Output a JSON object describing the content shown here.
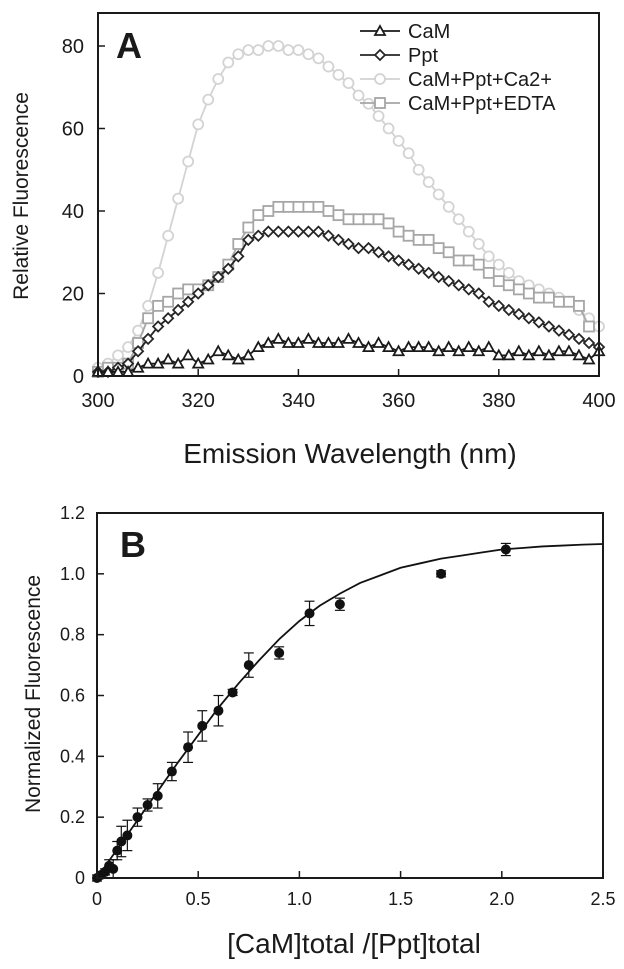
{
  "colors": {
    "axis": "#1a1a1a",
    "cam": "#1a1a1a",
    "ppt": "#262626",
    "ca": "#d3d3d3",
    "edta": "#a6a6a6",
    "points": "#111111"
  },
  "chart_data": [
    {
      "panel_label": "A",
      "type": "line",
      "xlabel": "Emission Wavelength (nm)",
      "ylabel": "Relative Fluorescence",
      "xlim": [
        300,
        400
      ],
      "ylim": [
        0,
        88
      ],
      "xticks": [
        300,
        320,
        340,
        360,
        380,
        400
      ],
      "yticks": [
        0,
        20,
        40,
        60,
        80
      ],
      "grid": false,
      "legend_position": "top-right",
      "series": [
        {
          "name": "CaM",
          "marker": "triangle",
          "color_key": "cam",
          "x": [
            300,
            302,
            304,
            306,
            308,
            310,
            312,
            314,
            316,
            318,
            320,
            322,
            324,
            326,
            328,
            330,
            332,
            334,
            336,
            338,
            340,
            342,
            344,
            346,
            348,
            350,
            352,
            354,
            356,
            358,
            360,
            362,
            364,
            366,
            368,
            370,
            372,
            374,
            376,
            378,
            380,
            382,
            384,
            386,
            388,
            390,
            392,
            394,
            396,
            398,
            400
          ],
          "y": [
            1,
            1,
            1,
            1,
            2,
            3,
            3,
            4,
            3,
            5,
            3,
            4,
            6,
            5,
            4,
            5,
            7,
            8,
            9,
            8,
            8,
            9,
            8,
            8,
            8,
            9,
            8,
            7,
            8,
            7,
            6,
            7,
            7,
            7,
            6,
            7,
            6,
            7,
            6,
            7,
            5,
            5,
            6,
            5,
            6,
            5,
            6,
            6,
            5,
            4,
            6
          ]
        },
        {
          "name": "Ppt",
          "marker": "diamond",
          "color_key": "ppt",
          "x": [
            300,
            302,
            304,
            306,
            308,
            310,
            312,
            314,
            316,
            318,
            320,
            322,
            324,
            326,
            328,
            330,
            332,
            334,
            336,
            338,
            340,
            342,
            344,
            346,
            348,
            350,
            352,
            354,
            356,
            358,
            360,
            362,
            364,
            366,
            368,
            370,
            372,
            374,
            376,
            378,
            380,
            382,
            384,
            386,
            388,
            390,
            392,
            394,
            396,
            398,
            400
          ],
          "y": [
            1,
            1,
            2,
            3,
            6,
            9,
            12,
            14,
            16,
            18,
            20,
            22,
            24,
            26,
            29,
            33,
            34,
            35,
            35,
            35,
            35,
            35,
            35,
            34,
            33,
            32,
            31,
            31,
            30,
            29,
            28,
            27,
            26,
            25,
            24,
            23,
            22,
            21,
            20,
            18,
            17,
            16,
            15,
            14,
            13,
            12,
            11,
            10,
            9,
            8,
            7
          ]
        },
        {
          "name": "CaM+Ppt+Ca2+",
          "marker": "circle",
          "color_key": "ca",
          "x": [
            300,
            302,
            304,
            306,
            308,
            310,
            312,
            314,
            316,
            318,
            320,
            322,
            324,
            326,
            328,
            330,
            332,
            334,
            336,
            338,
            340,
            342,
            344,
            346,
            348,
            350,
            352,
            354,
            356,
            358,
            360,
            362,
            364,
            366,
            368,
            370,
            372,
            374,
            376,
            378,
            380,
            382,
            384,
            386,
            388,
            390,
            392,
            394,
            396,
            398,
            400
          ],
          "y": [
            2,
            3,
            5,
            7,
            11,
            17,
            25,
            34,
            43,
            52,
            61,
            67,
            72,
            76,
            78,
            79,
            79,
            80,
            80,
            79,
            79,
            78,
            77,
            75,
            73,
            71,
            68,
            66,
            63,
            60,
            57,
            54,
            50,
            47,
            44,
            41,
            38,
            35,
            32,
            29,
            27,
            25,
            23,
            22,
            21,
            20,
            19,
            18,
            16,
            14,
            12
          ]
        },
        {
          "name": "CaM+Ppt+EDTA",
          "marker": "square",
          "color_key": "edta",
          "x": [
            300,
            302,
            304,
            306,
            308,
            310,
            312,
            314,
            316,
            318,
            320,
            322,
            324,
            326,
            328,
            330,
            332,
            334,
            336,
            338,
            340,
            342,
            344,
            346,
            348,
            350,
            352,
            354,
            356,
            358,
            360,
            362,
            364,
            366,
            368,
            370,
            372,
            374,
            376,
            378,
            380,
            382,
            384,
            386,
            388,
            390,
            392,
            394,
            396,
            398
          ],
          "y": [
            1,
            2,
            2,
            3,
            8,
            14,
            17,
            18,
            20,
            21,
            21,
            22,
            24,
            27,
            32,
            36,
            39,
            40,
            41,
            41,
            41,
            41,
            41,
            40,
            39,
            38,
            38,
            38,
            38,
            37,
            35,
            34,
            33,
            33,
            31,
            30,
            28,
            28,
            27,
            25,
            23,
            22,
            21,
            20,
            19,
            19,
            18,
            18,
            17,
            12
          ]
        }
      ]
    },
    {
      "panel_label": "B",
      "type": "scatter",
      "xlabel": "[CaM]total /[Ppt]total",
      "ylabel": "Normalized Fluorescence",
      "xlim": [
        0,
        2.5
      ],
      "ylim": [
        0,
        1.2
      ],
      "xticks": [
        "0",
        "0.5",
        "1.0",
        "1.5",
        "2.0",
        "2.5"
      ],
      "yticks": [
        "0",
        "0.2",
        "0.4",
        "0.6",
        "0.8",
        "1.0",
        "1.2"
      ],
      "grid": false,
      "points": [
        {
          "x": 0.0,
          "y": 0.0,
          "err": 0.01
        },
        {
          "x": 0.02,
          "y": 0.01,
          "err": 0.01
        },
        {
          "x": 0.04,
          "y": 0.02,
          "err": 0.01
        },
        {
          "x": 0.06,
          "y": 0.04,
          "err": 0.02
        },
        {
          "x": 0.08,
          "y": 0.03,
          "err": 0.03
        },
        {
          "x": 0.1,
          "y": 0.09,
          "err": 0.03
        },
        {
          "x": 0.12,
          "y": 0.12,
          "err": 0.05
        },
        {
          "x": 0.15,
          "y": 0.14,
          "err": 0.05
        },
        {
          "x": 0.2,
          "y": 0.2,
          "err": 0.03
        },
        {
          "x": 0.25,
          "y": 0.24,
          "err": 0.02
        },
        {
          "x": 0.3,
          "y": 0.27,
          "err": 0.04
        },
        {
          "x": 0.37,
          "y": 0.35,
          "err": 0.03
        },
        {
          "x": 0.45,
          "y": 0.43,
          "err": 0.05
        },
        {
          "x": 0.52,
          "y": 0.5,
          "err": 0.05
        },
        {
          "x": 0.6,
          "y": 0.55,
          "err": 0.05
        },
        {
          "x": 0.67,
          "y": 0.61,
          "err": 0.01
        },
        {
          "x": 0.75,
          "y": 0.7,
          "err": 0.04
        },
        {
          "x": 0.9,
          "y": 0.74,
          "err": 0.02
        },
        {
          "x": 1.05,
          "y": 0.87,
          "err": 0.04
        },
        {
          "x": 1.2,
          "y": 0.9,
          "err": 0.02
        },
        {
          "x": 1.7,
          "y": 1.0,
          "err": 0.01
        },
        {
          "x": 2.02,
          "y": 1.08,
          "err": 0.02
        }
      ],
      "fit_line": {
        "x": [
          0,
          0.1,
          0.2,
          0.3,
          0.4,
          0.5,
          0.6,
          0.7,
          0.8,
          0.9,
          1.0,
          1.1,
          1.2,
          1.3,
          1.4,
          1.5,
          1.6,
          1.7,
          1.8,
          1.9,
          2.0,
          2.1,
          2.2,
          2.3,
          2.4,
          2.5
        ],
        "y": [
          0,
          0.095,
          0.19,
          0.285,
          0.38,
          0.47,
          0.56,
          0.64,
          0.715,
          0.785,
          0.845,
          0.895,
          0.935,
          0.97,
          0.995,
          1.02,
          1.035,
          1.05,
          1.06,
          1.07,
          1.08,
          1.085,
          1.09,
          1.093,
          1.096,
          1.098
        ]
      }
    }
  ]
}
